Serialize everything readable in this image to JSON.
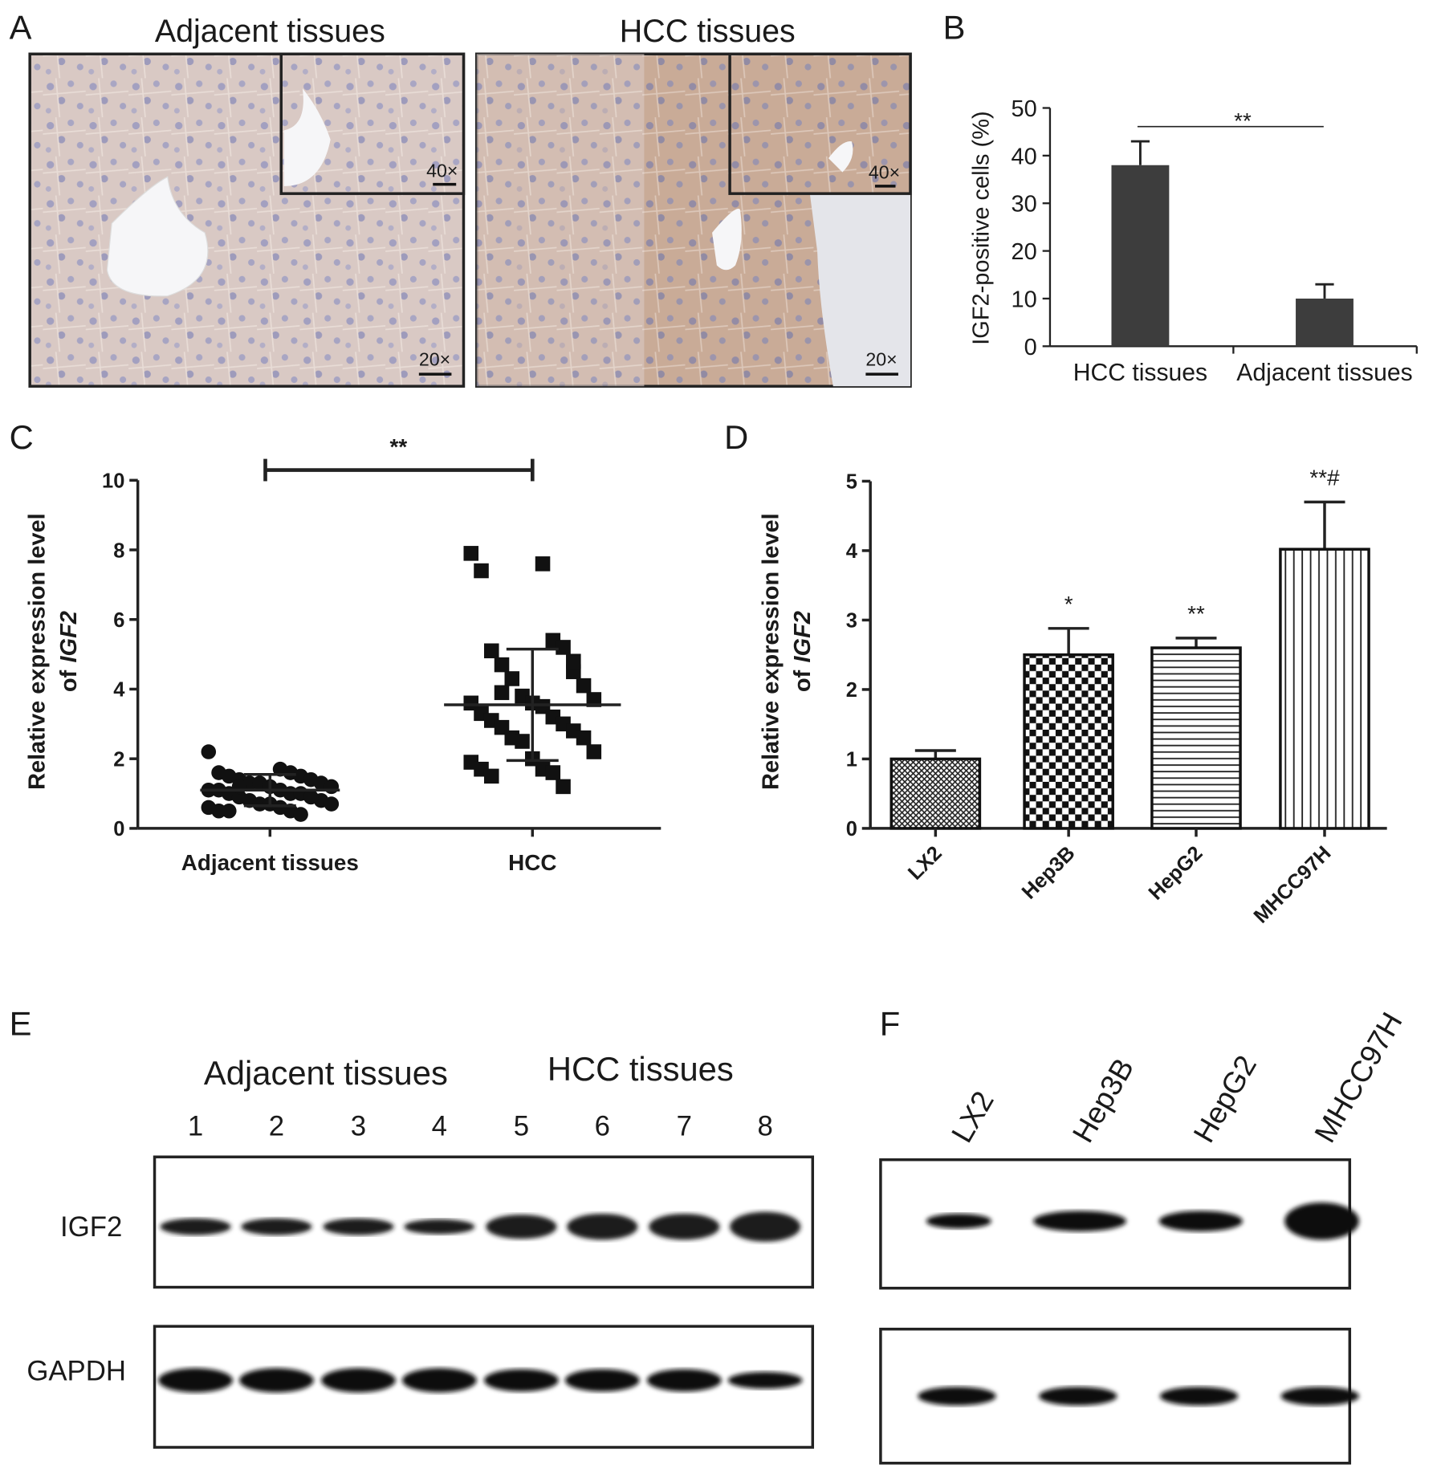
{
  "panel_labels": [
    "A",
    "B",
    "C",
    "D",
    "E",
    "F"
  ],
  "micrographs": {
    "titles": [
      "Adjacent tissues",
      "HCC tissues"
    ],
    "inset_magnification": [
      "40×",
      "40×"
    ],
    "main_magnification": [
      "20×",
      "20×"
    ]
  },
  "chart_data": [
    {
      "type": "bar",
      "ylabel": "IGF2-positive cells (%)",
      "categories": [
        "HCC tissues",
        "Adjacent tissues"
      ],
      "values": [
        38,
        10
      ],
      "errors": [
        5,
        3
      ],
      "color": "#3d3d3d",
      "ylim": [
        0,
        50
      ],
      "yticks": [
        0,
        10,
        20,
        30,
        40,
        50
      ],
      "significance": "**"
    },
    {
      "type": "scatter",
      "ylabel": [
        "Relative expression level",
        "of",
        "IGF2"
      ],
      "categories": [
        "Adjacent tissues",
        "HCC"
      ],
      "groups": [
        {
          "marker": "circle",
          "values": [
            2.2,
            1.7,
            1.6,
            1.6,
            1.5,
            1.5,
            1.4,
            1.4,
            1.3,
            1.3,
            1.3,
            1.2,
            1.2,
            1.1,
            1.1,
            1.1,
            1.0,
            1.0,
            1.0,
            0.9,
            0.9,
            0.8,
            0.8,
            0.7,
            0.7,
            0.7,
            0.6,
            0.6,
            0.5,
            0.5,
            0.5,
            0.4,
            1.2,
            0.9
          ],
          "mean": 1.1,
          "sd": 0.45
        },
        {
          "marker": "square",
          "values": [
            7.9,
            7.6,
            7.4,
            5.4,
            5.1,
            5.2,
            4.7,
            4.5,
            4.3,
            4.1,
            3.8,
            3.7,
            3.6,
            3.6,
            3.5,
            3.3,
            3.2,
            3.1,
            3.0,
            2.9,
            2.8,
            2.6,
            2.6,
            2.5,
            2.2,
            2.0,
            1.9,
            1.7,
            1.7,
            1.6,
            1.5,
            1.2,
            3.9,
            4.8
          ],
          "mean": 3.55,
          "sd": 1.6
        }
      ],
      "color": "#111111",
      "ylim": [
        0,
        10
      ],
      "yticks": [
        0,
        2,
        4,
        6,
        8,
        10
      ],
      "significance": "**"
    },
    {
      "type": "bar",
      "ylabel": [
        "Relative expression level",
        "of",
        "IGF2"
      ],
      "categories": [
        "LX2",
        "Hep3B",
        "HepG2",
        "MHCC97H"
      ],
      "values": [
        1.0,
        2.5,
        2.6,
        4.02
      ],
      "errors": [
        0.12,
        0.38,
        0.14,
        0.68
      ],
      "significance": [
        null,
        "*",
        "**",
        "**#"
      ],
      "patterns": [
        "crosshatch",
        "checker",
        "horizontal",
        "vertical"
      ],
      "ylim": [
        0,
        5
      ],
      "yticks": [
        0,
        1,
        2,
        3,
        4,
        5
      ]
    }
  ],
  "blot_e": {
    "groups": [
      "Adjacent tissues",
      "HCC tissues"
    ],
    "lanes": [
      "1",
      "2",
      "3",
      "4",
      "5",
      "6",
      "7",
      "8"
    ],
    "rows": [
      "IGF2",
      "GAPDH"
    ]
  },
  "blot_f": {
    "lanes": [
      "LX2",
      "Hep3B",
      "HepG2",
      "MHCC97H"
    ]
  }
}
